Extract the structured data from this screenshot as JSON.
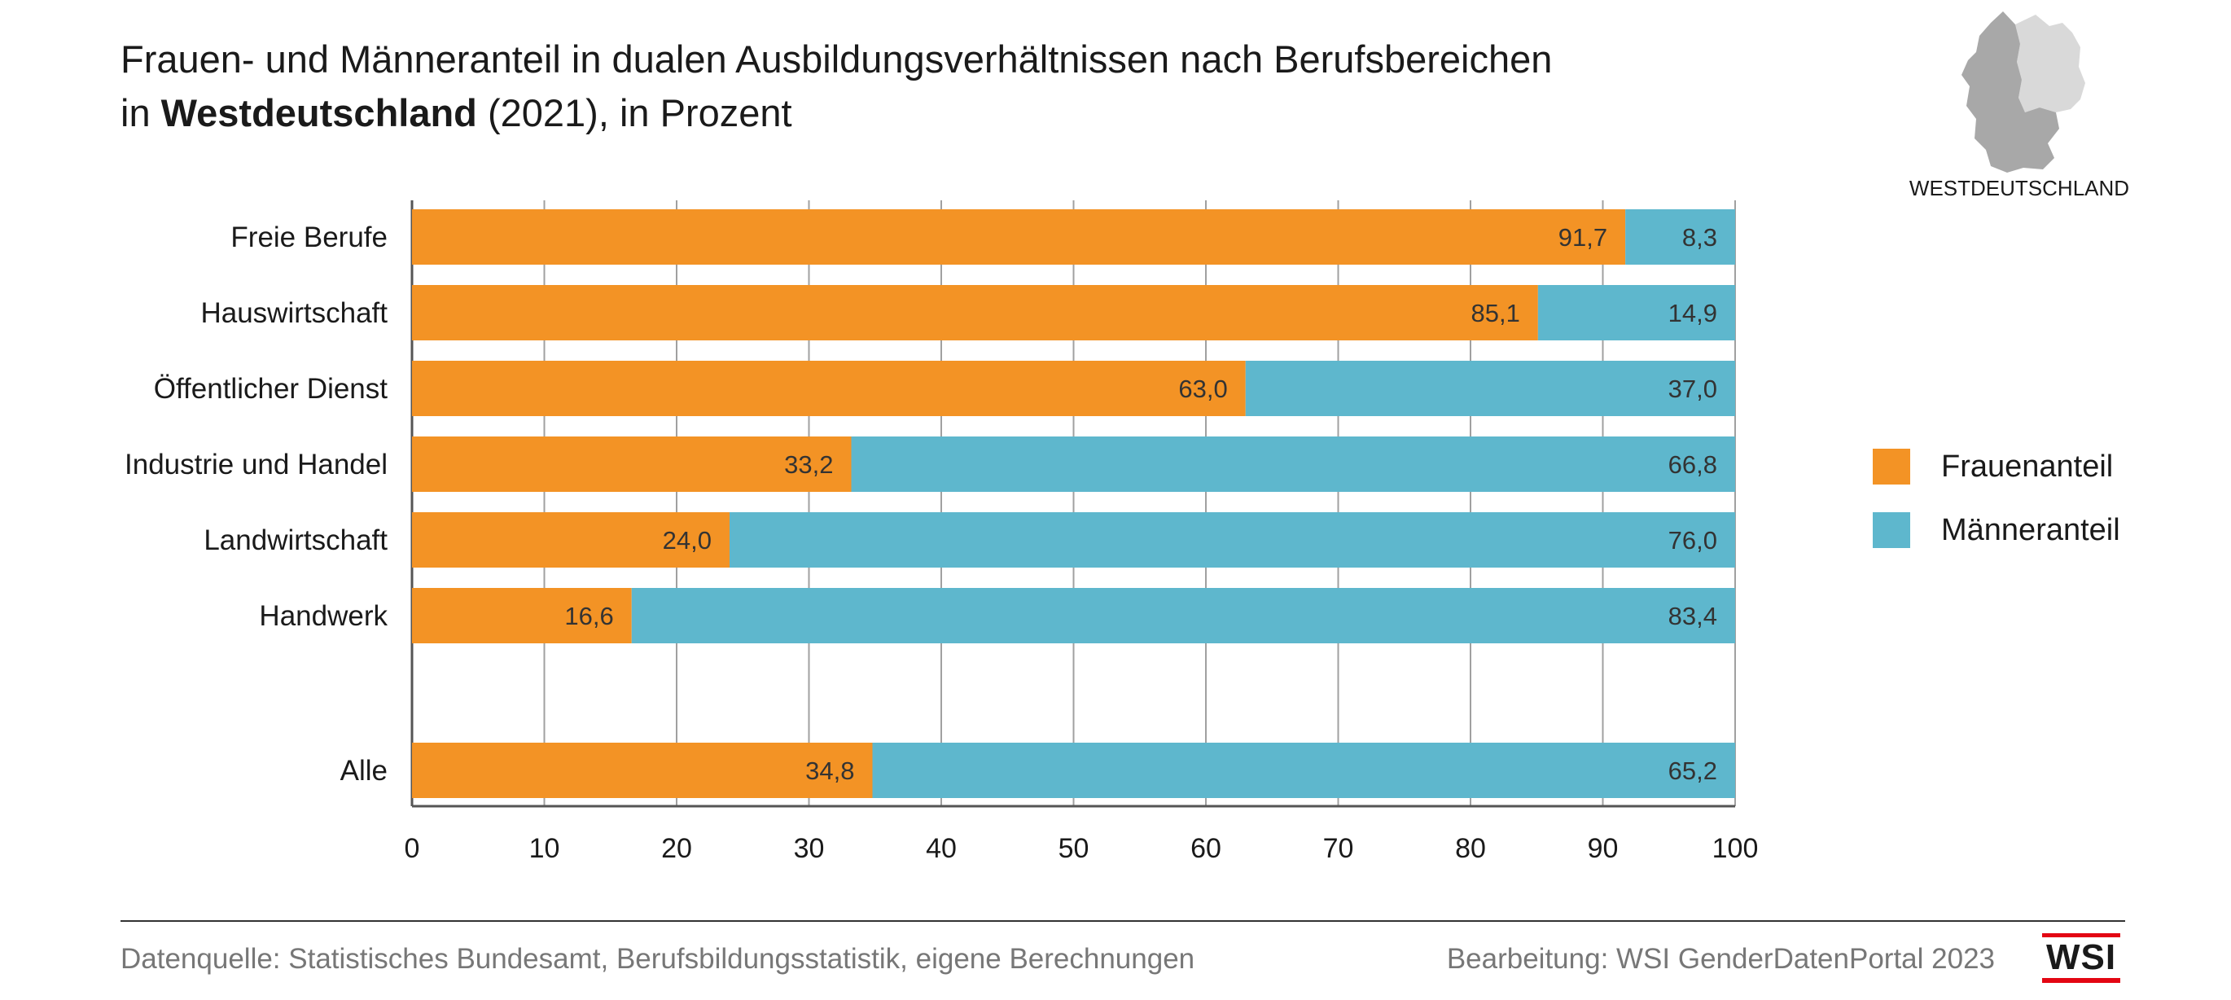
{
  "title": {
    "line1": "Frauen- und Männeranteil in dualen Ausbildungsverhältnissen nach Berufsbereichen",
    "line2_prefix": "in ",
    "line2_bold": "Westdeutschland",
    "line2_suffix": " (2021), in Prozent"
  },
  "map": {
    "label": "WESTDEUTSCHLAND",
    "highlight_color": "#a8a8a8",
    "other_color": "#d9d9d9"
  },
  "legend": [
    {
      "label": "Frauenanteil",
      "color": "#f39325"
    },
    {
      "label": "Männeranteil",
      "color": "#5eb7cd"
    }
  ],
  "footer": {
    "source": "Datenquelle: Statistisches Bundesamt, Berufsbildungsstatistik, eigene Berechnungen",
    "credit": "Bearbeitung: WSI GenderDatenPortal 2023",
    "logo_text": "WSI"
  },
  "chart_data": {
    "type": "bar",
    "orientation": "horizontal",
    "stacked": true,
    "categories": [
      "Freie Berufe",
      "Hauswirtschaft",
      "Öffentlicher Dienst",
      "Industrie und Handel",
      "Landwirtschaft",
      "Handwerk",
      "Alle"
    ],
    "series": [
      {
        "name": "Frauenanteil",
        "color": "#f39325",
        "values": [
          91.7,
          85.1,
          63.0,
          33.2,
          24.0,
          16.6,
          34.8
        ],
        "labels": [
          "91,7",
          "85,1",
          "63,0",
          "33,2",
          "24,0",
          "16,6",
          "34,8"
        ]
      },
      {
        "name": "Männeranteil",
        "color": "#5eb7cd",
        "values": [
          8.3,
          14.9,
          37.0,
          66.8,
          76.0,
          83.4,
          65.2
        ],
        "labels": [
          "8,3",
          "14,9",
          "37,0",
          "66,8",
          "76,0",
          "83,4",
          "65,2"
        ]
      }
    ],
    "xlim": [
      0,
      100
    ],
    "xticks": [
      "0",
      "10",
      "20",
      "30",
      "40",
      "50",
      "60",
      "70",
      "80",
      "90",
      "100"
    ],
    "grid": true,
    "legend_position": "right"
  }
}
